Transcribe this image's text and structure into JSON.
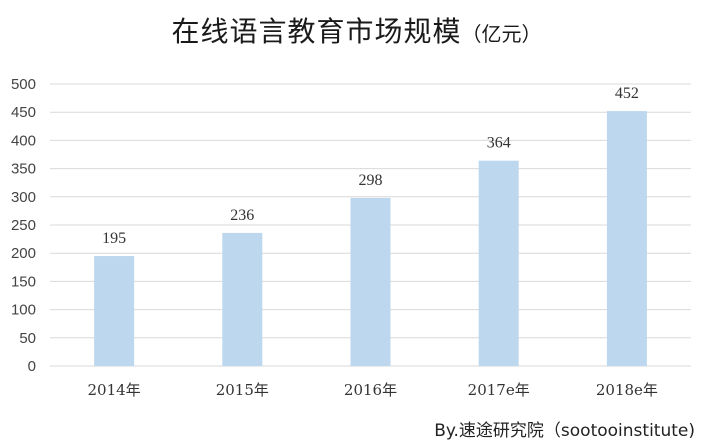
{
  "chart_data": {
    "type": "bar",
    "title": "在线语言教育市场规模",
    "title_unit": "（亿元）",
    "categories": [
      "2014年",
      "2015年",
      "2016年",
      "2017e年",
      "2018e年"
    ],
    "values": [
      195,
      236,
      298,
      364,
      452
    ],
    "ylim": [
      0,
      500
    ],
    "yticks": [
      0,
      50,
      100,
      150,
      200,
      250,
      300,
      350,
      400,
      450,
      500
    ],
    "grid": true,
    "legend": "none",
    "bar_color": "#bdd7ee",
    "gridline_color": "#d9d9d9"
  },
  "source_note": "By.速途研究院（sootooinstitute)"
}
